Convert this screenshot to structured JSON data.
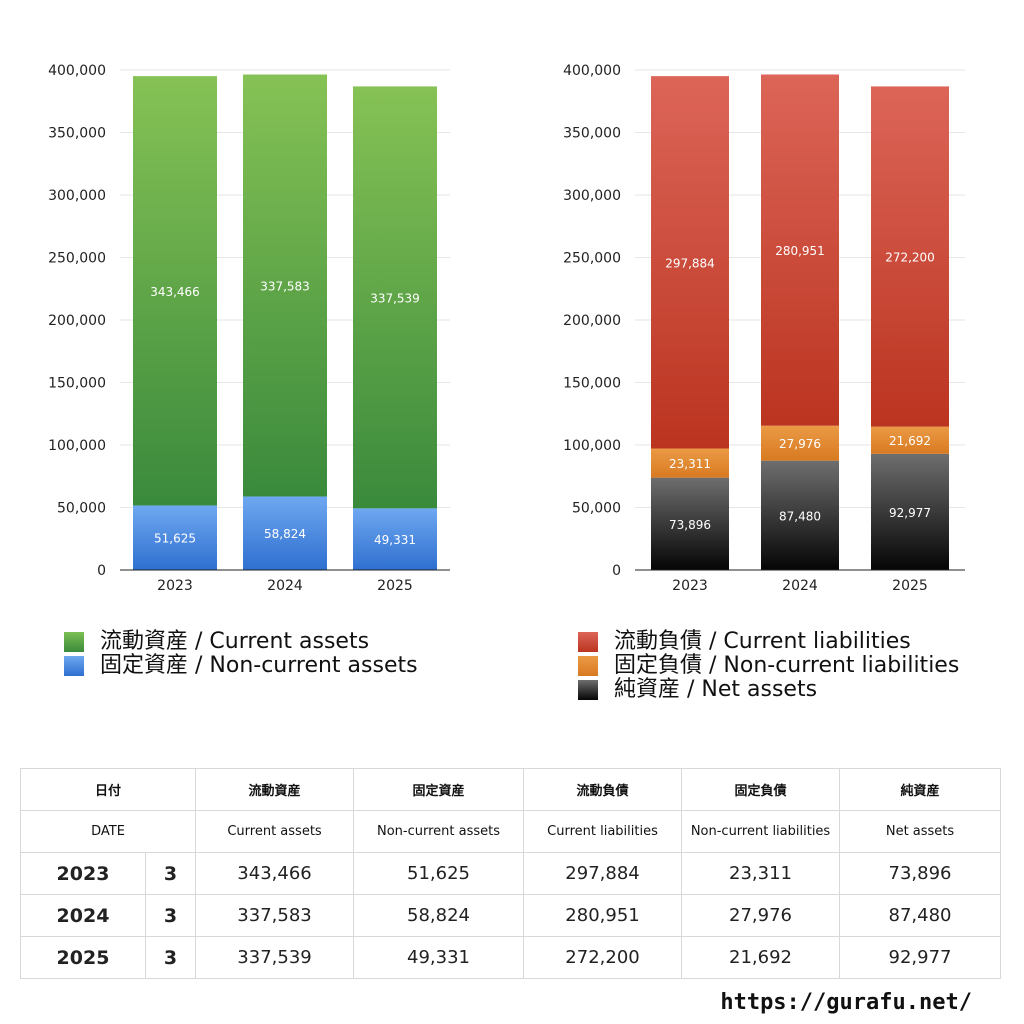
{
  "chart_data": [
    {
      "type": "bar",
      "stacked": true,
      "categories": [
        "2023",
        "2024",
        "2025"
      ],
      "ylim": [
        0,
        400000
      ],
      "yticks": [
        "0",
        "50,000",
        "100,000",
        "150,000",
        "200,000",
        "250,000",
        "300,000",
        "350,000",
        "400,000"
      ],
      "grid": true,
      "legend_position": "bottom",
      "series": [
        {
          "name": "固定資産 / Non-current assets",
          "values": [
            51625,
            58824,
            49331
          ],
          "labels": [
            "51,625",
            "58,824",
            "49,331"
          ],
          "color_top": "#6ea8f0",
          "color_bottom": "#2f6fd0"
        },
        {
          "name": "流動資産 / Current assets",
          "values": [
            343466,
            337583,
            337539
          ],
          "labels": [
            "343,466",
            "337,583",
            "337,539"
          ],
          "color_top": "#86c255",
          "color_bottom": "#3a8a3c"
        }
      ]
    },
    {
      "type": "bar",
      "stacked": true,
      "categories": [
        "2023",
        "2024",
        "2025"
      ],
      "ylim": [
        0,
        400000
      ],
      "yticks": [
        "0",
        "50,000",
        "100,000",
        "150,000",
        "200,000",
        "250,000",
        "300,000",
        "350,000",
        "400,000"
      ],
      "grid": true,
      "legend_position": "bottom",
      "series": [
        {
          "name": "純資産 / Net assets",
          "values": [
            73896,
            87480,
            92977
          ],
          "labels": [
            "73,896",
            "87,480",
            "92,977"
          ],
          "color_top": "#6e6e6e",
          "color_bottom": "#050505"
        },
        {
          "name": "固定負債 / Non-current liabilities",
          "values": [
            23311,
            27976,
            21692
          ],
          "labels": [
            "23,311",
            "27,976",
            "21,692"
          ],
          "color_top": "#eb9a45",
          "color_bottom": "#d87a22"
        },
        {
          "name": "流動負債 / Current liabilities",
          "values": [
            297884,
            280951,
            272200
          ],
          "labels": [
            "297,884",
            "280,951",
            "272,200"
          ],
          "color_top": "#dc6558",
          "color_bottom": "#bb3420"
        }
      ]
    }
  ],
  "legends": {
    "left": [
      {
        "label": "流動資産 / Current assets",
        "color": "#5aa84a"
      },
      {
        "label": "固定資産 / Non-current assets",
        "color": "#4a8ae0"
      }
    ],
    "right": [
      {
        "label": "流動負債 / Current liabilities",
        "color": "#d04a3a"
      },
      {
        "label": "固定負債 / Non-current liabilities",
        "color": "#e08a35"
      },
      {
        "label": "純資産 / Net assets",
        "color": "#333333"
      }
    ]
  },
  "table": {
    "header_jp": [
      "日付",
      "流動資産",
      "固定資産",
      "流動負債",
      "固定負債",
      "純資産"
    ],
    "header_en": [
      "DATE",
      "Current assets",
      "Non-current assets",
      "Current liabilities",
      "Non-current liabilities",
      "Net assets"
    ],
    "rows": [
      {
        "year": "2023",
        "month": "3",
        "values": [
          "343,466",
          "51,625",
          "297,884",
          "23,311",
          "73,896"
        ]
      },
      {
        "year": "2024",
        "month": "3",
        "values": [
          "337,583",
          "58,824",
          "280,951",
          "27,976",
          "87,480"
        ]
      },
      {
        "year": "2025",
        "month": "3",
        "values": [
          "337,539",
          "49,331",
          "272,200",
          "21,692",
          "92,977"
        ]
      }
    ]
  },
  "footer": {
    "url": "https://gurafu.net/"
  }
}
